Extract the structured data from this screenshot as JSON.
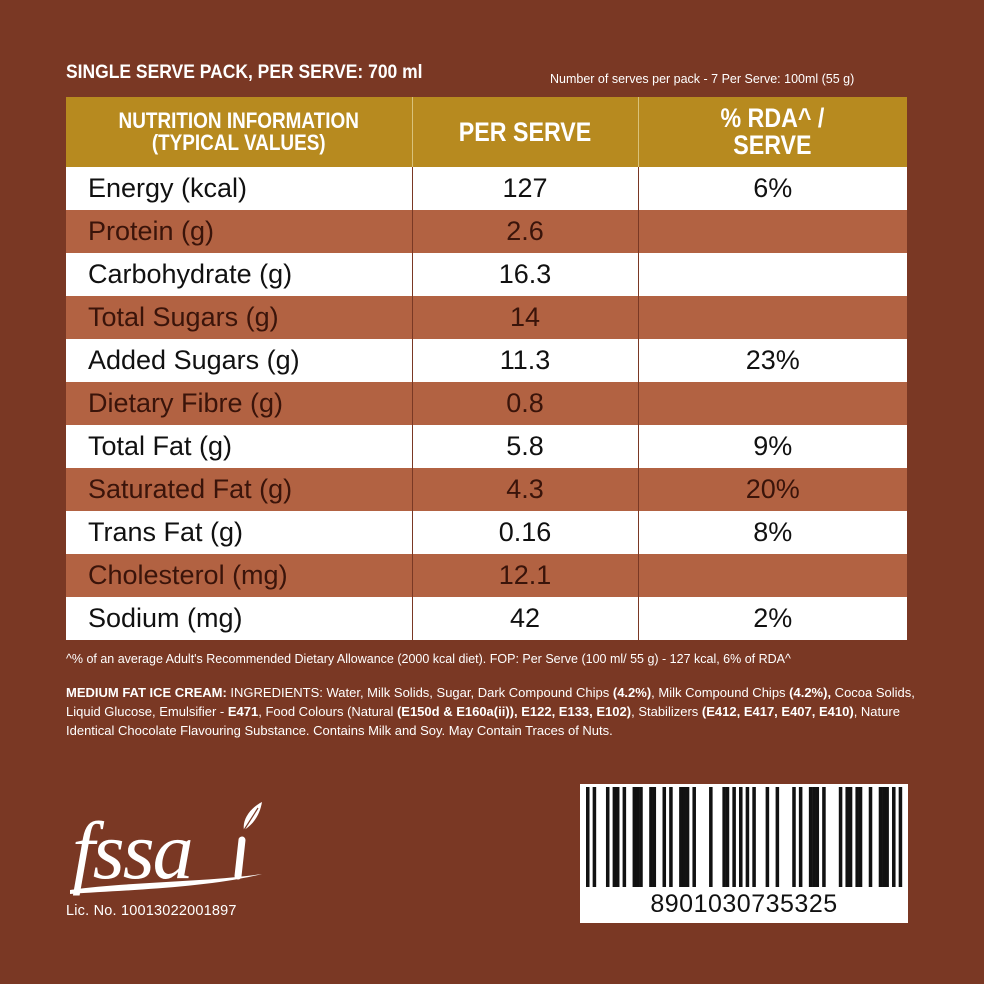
{
  "header": {
    "title": "SINGLE SERVE PACK, PER SERVE: 700 ml",
    "subtitle": "Number of serves per pack - 7 Per Serve: 100ml (55 g)"
  },
  "table": {
    "headers": {
      "col1_line1": "NUTRITION INFORMATION",
      "col1_line2": "(TYPICAL VALUES)",
      "col2": "PER SERVE",
      "col3_line1": "% RDA^ /",
      "col3_line2": "SERVE"
    },
    "rows": [
      {
        "name": "Energy (kcal)",
        "per_serve": "127",
        "rda": "6%"
      },
      {
        "name": "Protein (g)",
        "per_serve": "2.6",
        "rda": ""
      },
      {
        "name": "Carbohydrate (g)",
        "per_serve": "16.3",
        "rda": ""
      },
      {
        "name": "Total Sugars (g)",
        "per_serve": "14",
        "rda": ""
      },
      {
        "name": "Added Sugars (g)",
        "per_serve": "11.3",
        "rda": "23%"
      },
      {
        "name": "Dietary Fibre (g)",
        "per_serve": "0.8",
        "rda": ""
      },
      {
        "name": "Total Fat (g)",
        "per_serve": "5.8",
        "rda": "9%"
      },
      {
        "name": "Saturated Fat (g)",
        "per_serve": "4.3",
        "rda": "20%"
      },
      {
        "name": "Trans Fat (g)",
        "per_serve": "0.16",
        "rda": "8%"
      },
      {
        "name": "Cholesterol (mg)",
        "per_serve": "12.1",
        "rda": ""
      },
      {
        "name": "Sodium (mg)",
        "per_serve": "42",
        "rda": "2%"
      }
    ]
  },
  "footnote": "^% of an average Adult's Recommended Dietary Allowance (2000 kcal diet). FOP: Per Serve (100 ml/ 55 g) - 127 kcal, 6% of RDA^",
  "ingredients": {
    "label": "MEDIUM FAT ICE CREAM:",
    "p1": " INGREDIENTS: Water, Milk Solids, Sugar, Dark Compound Chips ",
    "b1": "(4.2%)",
    "p2": ", Milk Compound Chips ",
    "b2": "(4.2%),",
    "p3": " Cocoa Solids, Liquid Glucose, Emulsifier - ",
    "b3": "E471",
    "p4": ", Food Colours (Natural ",
    "b4": "(E150d & E160a(ii)), E122, E133, E102)",
    "p5": ", Stabilizers ",
    "b5": "(E412, E417, E407, E410)",
    "p6": ", Nature Identical Chocolate Flavouring Substance. Contains Milk and Soy. May Contain Traces of Nuts."
  },
  "fssai": {
    "logo_text": "fssai",
    "license": "Lic. No. 10013022001897"
  },
  "barcode": {
    "number": "8901030735325"
  },
  "colors": {
    "background": "#7a3824",
    "header": "#b78a1f",
    "row_dark": "#b26242",
    "row_light": "#ffffff"
  }
}
